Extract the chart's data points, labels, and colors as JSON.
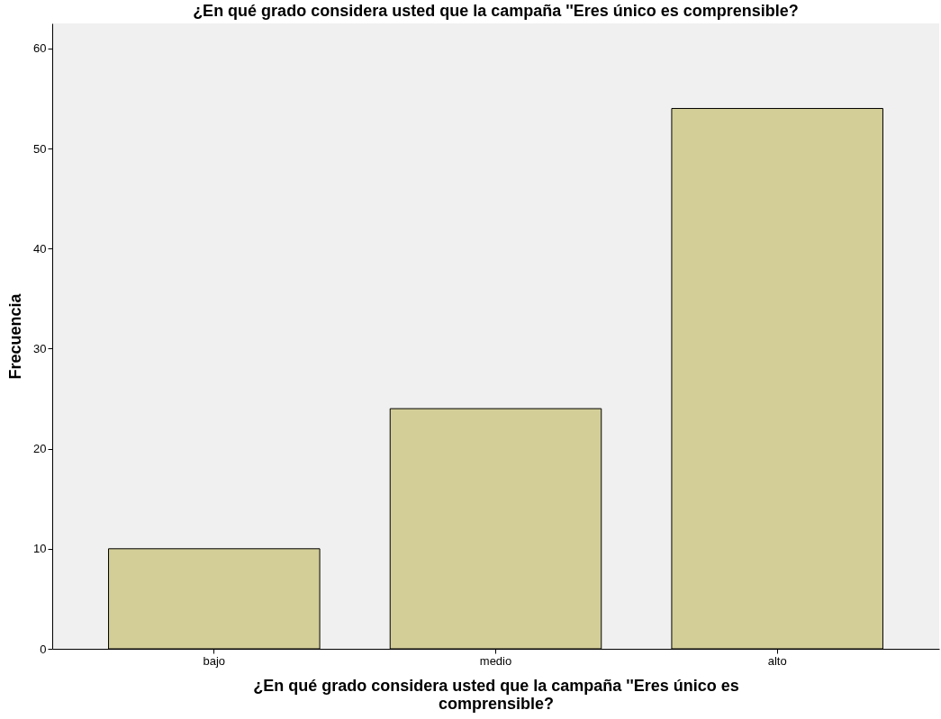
{
  "chart_data": {
    "type": "bar",
    "title": "¿En qué grado considera usted que la campaña ''Eres único es comprensible?",
    "xlabel": "¿En qué grado considera usted que la campaña ''Eres único es comprensible?",
    "ylabel": "Frecuencia",
    "categories": [
      "bajo",
      "medio",
      "alto"
    ],
    "values": [
      10,
      24,
      54
    ],
    "color": "#d3ce97",
    "ylim": [
      0,
      62.5
    ],
    "yticks": [
      0,
      10,
      20,
      30,
      40,
      50,
      60
    ],
    "grid": false
  }
}
